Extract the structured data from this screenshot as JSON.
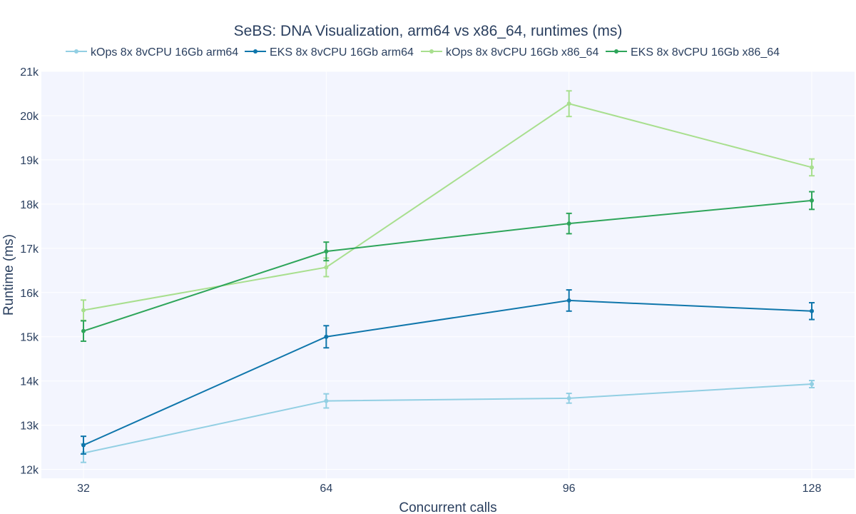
{
  "chart_data": {
    "type": "line",
    "title": "SeBS: DNA Visualization, arm64 vs x86_64, runtimes (ms)",
    "xlabel": "Concurrent calls",
    "ylabel": "Runtime (ms)",
    "x": [
      32,
      64,
      96,
      128
    ],
    "x_tick_labels": [
      "32",
      "64",
      "96",
      "128"
    ],
    "ylim": [
      11800,
      21000
    ],
    "y_ticks": [
      12000,
      13000,
      14000,
      15000,
      16000,
      17000,
      18000,
      19000,
      20000,
      21000
    ],
    "y_tick_labels": [
      "12k",
      "13k",
      "14k",
      "15k",
      "16k",
      "17k",
      "18k",
      "19k",
      "20k",
      "21k"
    ],
    "grid": true,
    "legend_position": "top",
    "series": [
      {
        "name": "kOps 8x 8vCPU 16Gb arm64",
        "color": "#92cfe3",
        "values": [
          12370,
          13550,
          13610,
          13930
        ],
        "errors": [
          210,
          160,
          110,
          80
        ]
      },
      {
        "name": "EKS 8x 8vCPU 16Gb arm64",
        "color": "#0f76ab",
        "values": [
          12550,
          15000,
          15820,
          15580
        ],
        "errors": [
          200,
          250,
          240,
          190
        ]
      },
      {
        "name": "kOps 8x 8vCPU 16Gb x86_64",
        "color": "#a8df8e",
        "values": [
          15600,
          16570,
          20270,
          18830
        ],
        "errors": [
          230,
          210,
          290,
          190
        ]
      },
      {
        "name": "EKS 8x 8vCPU 16Gb x86_64",
        "color": "#2ea55a",
        "values": [
          15130,
          16930,
          17560,
          18080
        ],
        "errors": [
          230,
          210,
          230,
          200
        ]
      }
    ]
  }
}
